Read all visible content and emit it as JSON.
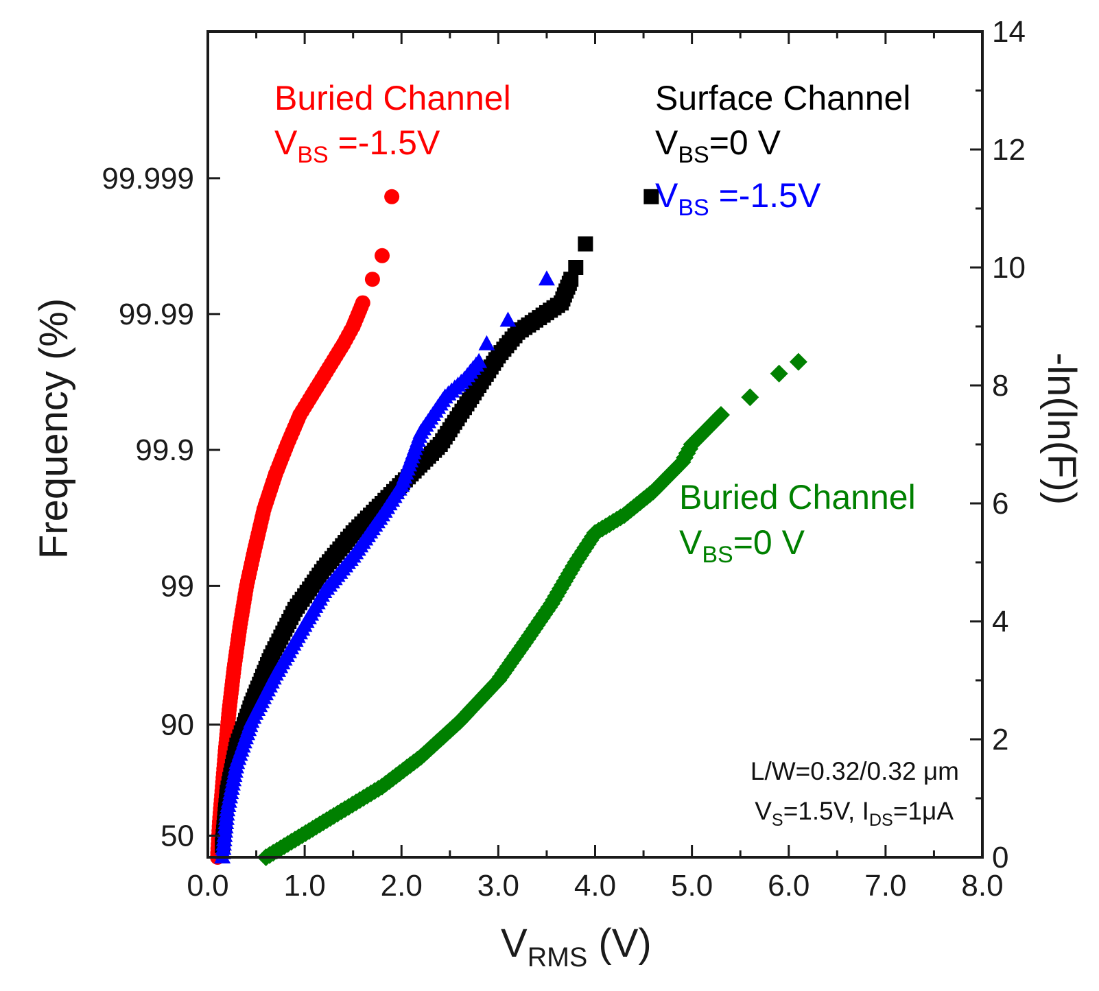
{
  "chart_data": {
    "type": "scatter",
    "title": "",
    "xlabel": {
      "main": "V",
      "sub": "RMS",
      "unit": " (V)"
    },
    "ylabel_left": "Frequency (%)",
    "ylabel_right": "-ln(ln(F))",
    "xlim": [
      0.0,
      8.0
    ],
    "ylim_right": [
      0,
      14
    ],
    "x_ticks": [
      0.0,
      1.0,
      2.0,
      3.0,
      4.0,
      5.0,
      6.0,
      7.0,
      8.0
    ],
    "x_tick_labels": [
      "0.0",
      "1.0",
      "2.0",
      "3.0",
      "4.0",
      "5.0",
      "6.0",
      "7.0",
      "8.0"
    ],
    "y_right_ticks": [
      0,
      2,
      4,
      6,
      8,
      10,
      12,
      14
    ],
    "y_right_tick_labels": [
      "0",
      "2",
      "4",
      "6",
      "8",
      "10",
      "12",
      "14"
    ],
    "y_left_ticks": [
      {
        "label": "50",
        "frac": 0.5
      },
      {
        "label": "90",
        "frac": 0.9
      },
      {
        "label": "99",
        "frac": 0.99
      },
      {
        "label": "99.9",
        "frac": 0.999
      },
      {
        "label": "99.99",
        "frac": 0.9999
      },
      {
        "label": "99.999",
        "frac": 0.99999
      }
    ],
    "series": [
      {
        "name": "Buried Channel VBS=-1.5V",
        "color": "#ff0000",
        "marker": "circle",
        "points": [
          [
            0.1,
            0.0
          ],
          [
            0.12,
            0.6
          ],
          [
            0.15,
            1.2
          ],
          [
            0.18,
            1.8
          ],
          [
            0.22,
            2.5
          ],
          [
            0.27,
            3.2
          ],
          [
            0.33,
            3.9
          ],
          [
            0.4,
            4.6
          ],
          [
            0.48,
            5.2
          ],
          [
            0.58,
            5.9
          ],
          [
            0.7,
            6.5
          ],
          [
            0.82,
            7.0
          ],
          [
            0.95,
            7.5
          ],
          [
            1.1,
            7.9
          ],
          [
            1.25,
            8.3
          ],
          [
            1.4,
            8.7
          ],
          [
            1.5,
            9.0
          ],
          [
            1.6,
            9.4
          ],
          [
            1.7,
            9.8
          ],
          [
            1.8,
            10.2
          ],
          [
            1.9,
            11.2
          ]
        ]
      },
      {
        "name": "Surface Channel VBS=0 V",
        "color": "#000000",
        "marker": "square",
        "points": [
          [
            0.15,
            0.2
          ],
          [
            0.2,
            1.1
          ],
          [
            0.3,
            1.9
          ],
          [
            0.45,
            2.6
          ],
          [
            0.65,
            3.4
          ],
          [
            0.9,
            4.2
          ],
          [
            1.2,
            4.9
          ],
          [
            1.5,
            5.5
          ],
          [
            1.8,
            6.0
          ],
          [
            2.1,
            6.5
          ],
          [
            2.4,
            7.0
          ],
          [
            2.6,
            7.5
          ],
          [
            2.8,
            8.0
          ],
          [
            3.0,
            8.5
          ],
          [
            3.2,
            8.9
          ],
          [
            3.65,
            9.4
          ],
          [
            3.75,
            9.8
          ],
          [
            3.8,
            10.0
          ],
          [
            3.9,
            10.4
          ],
          [
            4.58,
            11.2
          ]
        ]
      },
      {
        "name": "Surface Channel VBS=-1.5V",
        "color": "#0000ff",
        "marker": "triangle",
        "points": [
          [
            0.15,
            0.0
          ],
          [
            0.2,
            0.8
          ],
          [
            0.3,
            1.6
          ],
          [
            0.45,
            2.3
          ],
          [
            0.7,
            3.1
          ],
          [
            0.95,
            3.8
          ],
          [
            1.2,
            4.5
          ],
          [
            1.5,
            5.1
          ],
          [
            1.8,
            5.8
          ],
          [
            2.0,
            6.3
          ],
          [
            2.2,
            7.2
          ],
          [
            2.45,
            7.8
          ],
          [
            2.65,
            8.1
          ],
          [
            2.8,
            8.4
          ],
          [
            2.88,
            8.7
          ],
          [
            3.1,
            9.1
          ],
          [
            3.5,
            9.8
          ]
        ]
      },
      {
        "name": "Buried Channel VBS=0 V",
        "color": "#008000",
        "marker": "diamond",
        "points": [
          [
            0.6,
            0.0
          ],
          [
            0.9,
            0.3
          ],
          [
            1.3,
            0.7
          ],
          [
            1.8,
            1.2
          ],
          [
            2.2,
            1.7
          ],
          [
            2.6,
            2.3
          ],
          [
            3.0,
            3.0
          ],
          [
            3.3,
            3.7
          ],
          [
            3.55,
            4.3
          ],
          [
            3.8,
            5.0
          ],
          [
            4.0,
            5.5
          ],
          [
            4.3,
            5.8
          ],
          [
            4.6,
            6.2
          ],
          [
            4.9,
            6.7
          ],
          [
            5.0,
            7.0
          ],
          [
            5.3,
            7.5
          ],
          [
            5.6,
            7.8
          ],
          [
            5.9,
            8.2
          ],
          [
            6.1,
            8.4
          ]
        ]
      }
    ],
    "annotations": {
      "buried_neg": {
        "line1": "Buried Channel",
        "v": "V",
        "sub": "BS",
        "rest": " =-1.5V",
        "color": "#ff0000"
      },
      "surface": {
        "line1": "Surface Channel",
        "v": "V",
        "sub": "BS",
        "rest": "=0 V",
        "color": "#000000"
      },
      "surface_neg": {
        "v": "V",
        "sub": "BS",
        "rest": " =-1.5V",
        "color": "#0000ff"
      },
      "buried_zero": {
        "line1": "Buried Channel",
        "v": "V",
        "sub": "BS",
        "rest": "=0 V",
        "color": "#008000"
      },
      "conditions": {
        "line1": "L/W=0.32/0.32 μm",
        "vs_v": "V",
        "vs_sub": "S",
        "vs_rest": "=1.5V, ",
        "ids_i": "I",
        "ids_sub": "DS",
        "ids_rest": "=1μA"
      }
    }
  }
}
